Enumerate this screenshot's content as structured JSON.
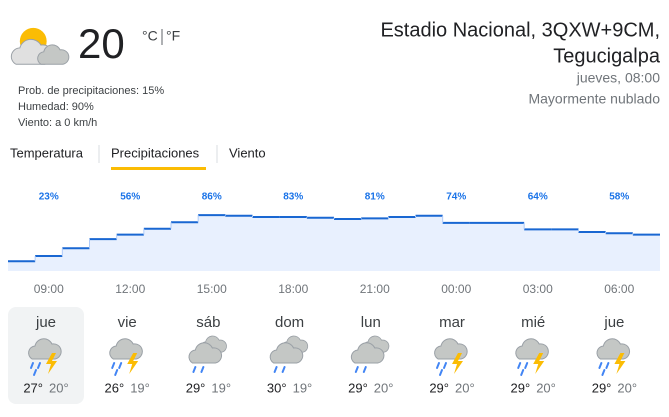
{
  "current": {
    "temperature": "20",
    "units": [
      "°C",
      "°F"
    ],
    "details": [
      "Prob. de precipitaciones: 15%",
      "Humedad: 90%",
      "Viento: a 0 km/h"
    ]
  },
  "location": {
    "name": "Estadio Nacional, 3QXW+9CM,",
    "city": "Tegucigalpa",
    "time": "jueves, 08:00",
    "condition": "Mayormente nublado"
  },
  "tabs": [
    "Temperatura",
    "Precipitaciones",
    "Viento"
  ],
  "precipitation": {
    "values": [
      15,
      23,
      35,
      49,
      56,
      65,
      75,
      86,
      85,
      83,
      83,
      82,
      80,
      81,
      83,
      85,
      74,
      74,
      74,
      64,
      64,
      60,
      58,
      56
    ],
    "value_labels": [
      null,
      "23%",
      null,
      null,
      "56%",
      null,
      null,
      "86%",
      null,
      null,
      "83%",
      null,
      null,
      "81%",
      null,
      null,
      "74%",
      null,
      null,
      "64%",
      null,
      null,
      "58%",
      null
    ],
    "times": [
      "09:00",
      "12:00",
      "15:00",
      "18:00",
      "21:00",
      "00:00",
      "03:00",
      "06:00"
    ],
    "line_color": "#1967d2",
    "fill_color": "#e8f0fe"
  },
  "days": [
    {
      "name": "jue",
      "high": "27°",
      "low": "20°"
    },
    {
      "name": "vie",
      "high": "26°",
      "low": "19°"
    },
    {
      "name": "sáb",
      "high": "29°",
      "low": "19°"
    },
    {
      "name": "dom",
      "high": "30°",
      "low": "19°"
    },
    {
      "name": "lun",
      "high": "29°",
      "low": "20°"
    },
    {
      "name": "mar",
      "high": "29°",
      "low": "20°"
    },
    {
      "name": "mié",
      "high": "29°",
      "low": "20°"
    },
    {
      "name": "jue",
      "high": "29°",
      "low": "20°"
    }
  ]
}
